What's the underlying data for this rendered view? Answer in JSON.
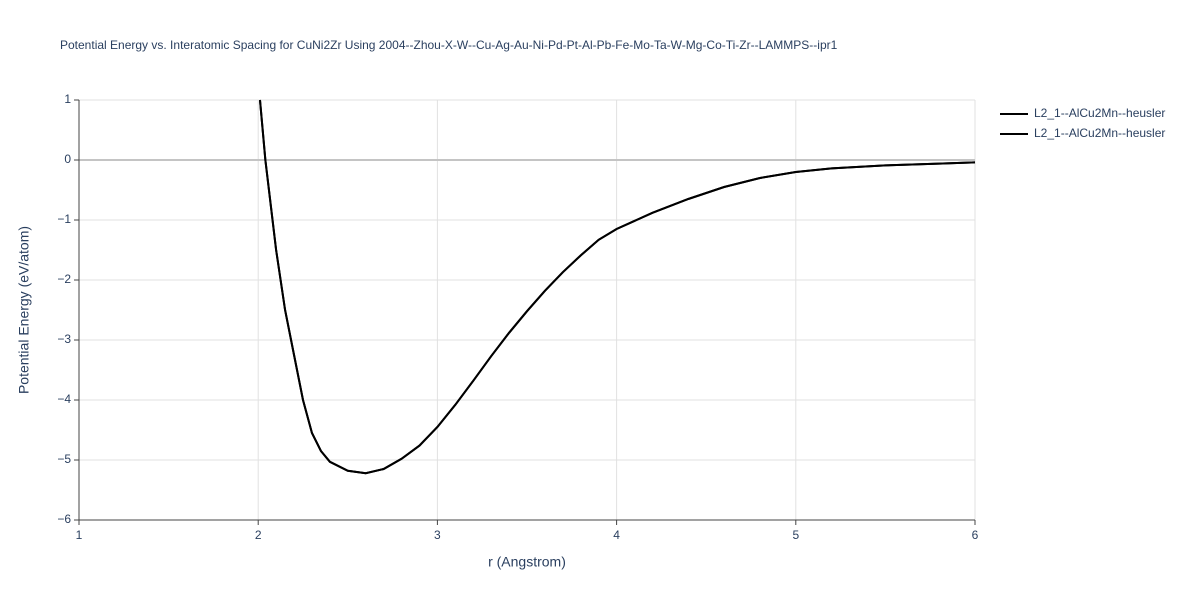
{
  "chart_data": {
    "type": "line",
    "title": "Potential Energy vs. Interatomic Spacing for CuNi2Zr Using 2004--Zhou-X-W--Cu-Ag-Au-Ni-Pd-Pt-Al-Pb-Fe-Mo-Ta-W-Mg-Co-Ti-Zr--LAMMPS--ipr1",
    "x_label": "r (Angstrom)",
    "y_label": "Potential Energy (eV/atom)",
    "x": [
      2.01,
      2.04,
      2.1,
      2.15,
      2.2,
      2.25,
      2.3,
      2.35,
      2.4,
      2.5,
      2.6,
      2.7,
      2.8,
      2.9,
      3.0,
      3.1,
      3.2,
      3.3,
      3.4,
      3.5,
      3.6,
      3.7,
      3.8,
      3.9,
      4.0,
      4.2,
      4.4,
      4.6,
      4.8,
      5.0,
      5.2,
      5.5,
      5.8,
      6.0
    ],
    "series": [
      {
        "name": "L2_1--AlCu2Mn--heusler",
        "color": "#000000",
        "values": [
          1.0,
          0.0,
          -1.5,
          -2.5,
          -3.25,
          -4.0,
          -4.55,
          -4.85,
          -5.03,
          -5.18,
          -5.22,
          -5.15,
          -4.98,
          -4.76,
          -4.45,
          -4.08,
          -3.68,
          -3.27,
          -2.88,
          -2.52,
          -2.18,
          -1.87,
          -1.59,
          -1.33,
          -1.15,
          -0.88,
          -0.65,
          -0.45,
          -0.3,
          -0.2,
          -0.14,
          -0.09,
          -0.06,
          -0.04
        ]
      },
      {
        "name": "L2_1--AlCu2Mn--heusler",
        "color": "#000000",
        "values": [
          1.0,
          0.0,
          -1.5,
          -2.5,
          -3.25,
          -4.0,
          -4.55,
          -4.85,
          -5.03,
          -5.18,
          -5.22,
          -5.15,
          -4.98,
          -4.76,
          -4.45,
          -4.08,
          -3.68,
          -3.27,
          -2.88,
          -2.52,
          -2.18,
          -1.87,
          -1.59,
          -1.33,
          -1.15,
          -0.88,
          -0.65,
          -0.45,
          -0.3,
          -0.2,
          -0.14,
          -0.09,
          -0.06,
          -0.04
        ]
      }
    ],
    "xlim": [
      1,
      6
    ],
    "xticks": [
      1,
      2,
      3,
      4,
      5,
      6
    ],
    "ylim": [
      -6,
      1
    ],
    "yticks": [
      {
        "value": -6,
        "label": "−6"
      },
      {
        "value": -5,
        "label": "−5"
      },
      {
        "value": -4,
        "label": "−4"
      },
      {
        "value": -3,
        "label": "−3"
      },
      {
        "value": -2,
        "label": "−2"
      },
      {
        "value": -1,
        "label": "−1"
      },
      0,
      1
    ],
    "grid": true,
    "legend": "top-right"
  }
}
